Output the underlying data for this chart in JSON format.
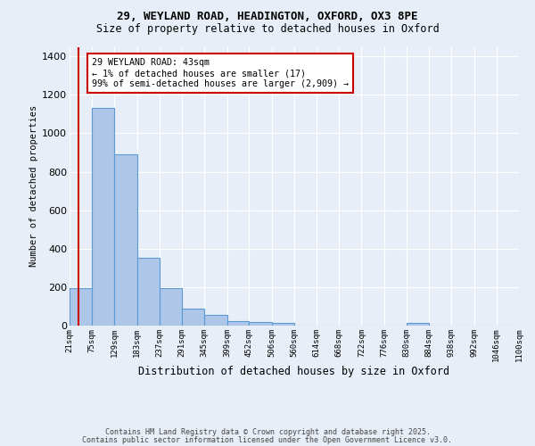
{
  "title1": "29, WEYLAND ROAD, HEADINGTON, OXFORD, OX3 8PE",
  "title2": "Size of property relative to detached houses in Oxford",
  "xlabel": "Distribution of detached houses by size in Oxford",
  "ylabel": "Number of detached properties",
  "bar_edges": [
    21,
    75,
    129,
    183,
    237,
    291,
    345,
    399,
    452,
    506,
    560,
    614,
    668,
    722,
    776,
    830,
    884,
    938,
    992,
    1046,
    1100
  ],
  "bar_heights": [
    197,
    1130,
    893,
    352,
    193,
    88,
    55,
    25,
    20,
    13,
    0,
    0,
    0,
    0,
    0,
    13,
    0,
    0,
    0,
    0
  ],
  "bar_color": "#aec6e8",
  "bar_edgecolor": "#5b9bd5",
  "bg_color": "#e8eef7",
  "grid_color": "#ffffff",
  "vline_x": 43,
  "vline_color": "#cc0000",
  "annotation_text": "29 WEYLAND ROAD: 43sqm\n← 1% of detached houses are smaller (17)\n99% of semi-detached houses are larger (2,909) →",
  "annotation_box_color": "#ffffff",
  "annotation_box_edgecolor": "#cc0000",
  "ylim": [
    0,
    1450
  ],
  "yticks": [
    0,
    200,
    400,
    600,
    800,
    1000,
    1200,
    1400
  ],
  "footer1": "Contains HM Land Registry data © Crown copyright and database right 2025.",
  "footer2": "Contains public sector information licensed under the Open Government Licence v3.0.",
  "tick_labels": [
    "21sqm",
    "75sqm",
    "129sqm",
    "183sqm",
    "237sqm",
    "291sqm",
    "345sqm",
    "399sqm",
    "452sqm",
    "506sqm",
    "560sqm",
    "614sqm",
    "668sqm",
    "722sqm",
    "776sqm",
    "830sqm",
    "884sqm",
    "938sqm",
    "992sqm",
    "1046sqm",
    "1100sqm"
  ]
}
